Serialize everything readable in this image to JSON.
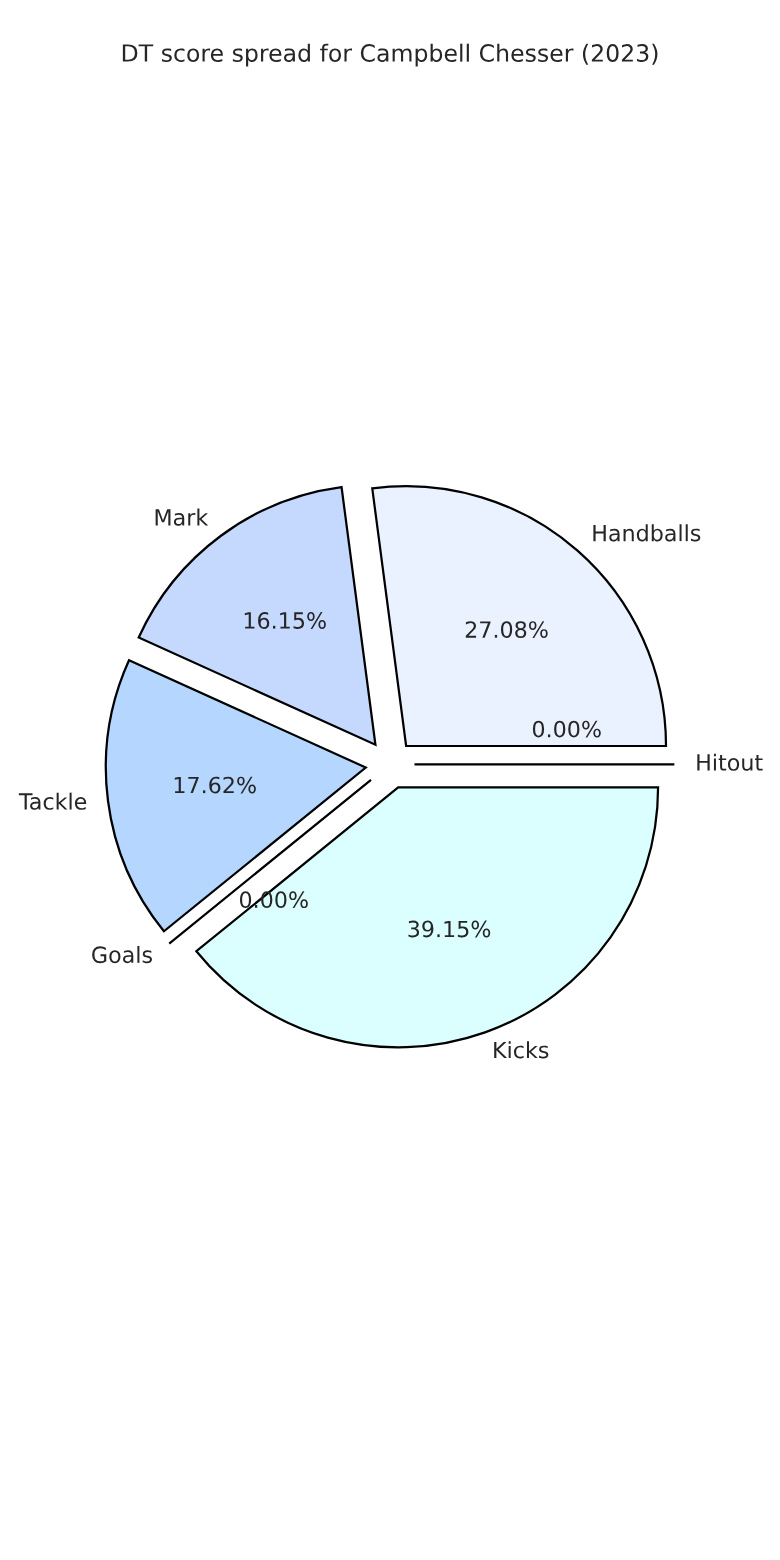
{
  "chart_data": {
    "type": "pie",
    "title": "DT score spread for Campbell Chesser (2023)",
    "categories": [
      "Handballs",
      "Mark",
      "Tackle",
      "Goals",
      "Kicks",
      "Hitout"
    ],
    "values": [
      27.08,
      16.15,
      17.62,
      0.0,
      39.15,
      0.0
    ],
    "value_labels": [
      "27.08%",
      "16.15%",
      "17.62%",
      "0.00%",
      "39.15%",
      "0.00%"
    ],
    "colors": [
      "#eaf1ff",
      "#c5d9ff",
      "#b5d6ff",
      "#a8c8f0",
      "#dbffff",
      "#d0e0f0"
    ]
  }
}
